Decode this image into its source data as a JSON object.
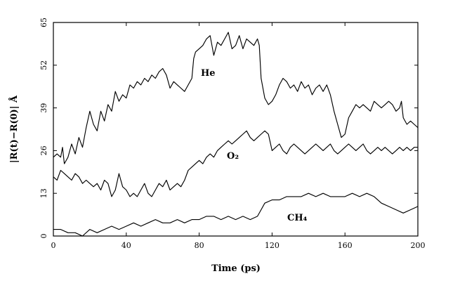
{
  "chart_data": {
    "type": "line",
    "title": "",
    "xlabel": "Time (ps)",
    "ylabel": "|R(t)−R(0)| Å",
    "xlim": [
      0,
      200
    ],
    "ylim": [
      0,
      65
    ],
    "xticks": [
      0,
      40,
      80,
      120,
      160,
      200
    ],
    "yticks": [
      0,
      13,
      26,
      39,
      52,
      65
    ],
    "grid": false,
    "series": [
      {
        "name": "He",
        "x": [
          0,
          2,
          4,
          5,
          6,
          8,
          10,
          12,
          14,
          16,
          18,
          20,
          22,
          24,
          26,
          28,
          30,
          32,
          34,
          36,
          38,
          40,
          42,
          44,
          46,
          48,
          50,
          52,
          54,
          56,
          58,
          60,
          62,
          64,
          66,
          68,
          70,
          72,
          74,
          76,
          77,
          78,
          80,
          82,
          84,
          86,
          88,
          90,
          92,
          94,
          96,
          98,
          100,
          102,
          104,
          106,
          108,
          110,
          112,
          113,
          114,
          116,
          118,
          120,
          122,
          124,
          126,
          128,
          130,
          132,
          134,
          136,
          138,
          140,
          142,
          144,
          146,
          148,
          150,
          152,
          154,
          156,
          157,
          158,
          160,
          162,
          164,
          166,
          168,
          170,
          172,
          174,
          176,
          178,
          180,
          182,
          184,
          186,
          188,
          190,
          191,
          192,
          194,
          196,
          198,
          200
        ],
        "values": [
          24,
          25,
          24,
          27,
          22,
          24,
          28,
          25,
          30,
          27,
          33,
          38,
          34,
          32,
          38,
          35,
          40,
          38,
          44,
          41,
          43,
          42,
          46,
          45,
          47,
          46,
          48,
          47,
          49,
          48,
          50,
          51,
          49,
          45,
          47,
          46,
          45,
          44,
          46,
          48,
          54,
          56,
          57,
          58,
          60,
          61,
          55,
          59,
          58,
          60,
          62,
          57,
          58,
          61,
          57,
          60,
          59,
          58,
          60,
          58,
          48,
          42,
          40,
          41,
          43,
          46,
          48,
          47,
          45,
          46,
          44,
          47,
          45,
          46,
          43,
          45,
          46,
          44,
          46,
          43,
          38,
          34,
          32,
          30,
          31,
          36,
          38,
          40,
          39,
          40,
          39,
          38,
          41,
          40,
          39,
          40,
          41,
          40,
          38,
          39,
          41,
          36,
          34,
          35,
          34,
          33
        ]
      },
      {
        "name": "O₂",
        "x": [
          0,
          2,
          4,
          6,
          8,
          10,
          12,
          14,
          16,
          18,
          20,
          22,
          24,
          26,
          28,
          30,
          32,
          34,
          36,
          38,
          40,
          42,
          44,
          46,
          48,
          50,
          52,
          54,
          56,
          58,
          60,
          62,
          64,
          66,
          68,
          70,
          72,
          74,
          76,
          78,
          80,
          82,
          84,
          86,
          88,
          90,
          92,
          94,
          96,
          98,
          100,
          102,
          104,
          106,
          108,
          110,
          112,
          114,
          116,
          118,
          120,
          122,
          124,
          126,
          128,
          130,
          132,
          134,
          136,
          138,
          140,
          142,
          144,
          146,
          148,
          150,
          152,
          154,
          156,
          158,
          160,
          162,
          164,
          166,
          168,
          170,
          172,
          174,
          176,
          178,
          180,
          182,
          184,
          186,
          188,
          190,
          192,
          194,
          196,
          198,
          200
        ],
        "values": [
          18,
          17,
          20,
          19,
          18,
          17,
          19,
          18,
          16,
          17,
          16,
          15,
          16,
          14,
          17,
          16,
          12,
          14,
          19,
          15,
          14,
          12,
          13,
          12,
          14,
          16,
          13,
          12,
          14,
          16,
          15,
          17,
          14,
          15,
          16,
          15,
          17,
          20,
          21,
          22,
          23,
          22,
          24,
          25,
          24,
          26,
          27,
          28,
          29,
          28,
          29,
          30,
          31,
          32,
          30,
          29,
          30,
          31,
          32,
          31,
          26,
          27,
          28,
          26,
          25,
          27,
          28,
          27,
          26,
          25,
          26,
          27,
          28,
          27,
          26,
          27,
          28,
          26,
          25,
          26,
          27,
          28,
          27,
          26,
          27,
          28,
          26,
          25,
          26,
          27,
          26,
          27,
          26,
          25,
          26,
          27,
          26,
          27,
          26,
          27,
          27
        ]
      },
      {
        "name": "CH₄",
        "x": [
          0,
          4,
          8,
          12,
          16,
          20,
          24,
          28,
          32,
          36,
          40,
          44,
          48,
          52,
          56,
          60,
          64,
          68,
          72,
          76,
          80,
          84,
          88,
          92,
          96,
          100,
          104,
          108,
          112,
          114,
          116,
          120,
          124,
          128,
          132,
          136,
          140,
          144,
          148,
          152,
          156,
          160,
          164,
          168,
          172,
          176,
          180,
          184,
          188,
          192,
          196,
          200
        ],
        "values": [
          2,
          2,
          1,
          1,
          0,
          2,
          1,
          2,
          3,
          2,
          3,
          4,
          3,
          4,
          5,
          4,
          4,
          5,
          4,
          5,
          5,
          6,
          6,
          5,
          6,
          5,
          6,
          5,
          6,
          8,
          10,
          11,
          11,
          12,
          12,
          12,
          13,
          12,
          13,
          12,
          12,
          12,
          13,
          12,
          13,
          12,
          10,
          9,
          8,
          7,
          8,
          9
        ]
      }
    ]
  }
}
